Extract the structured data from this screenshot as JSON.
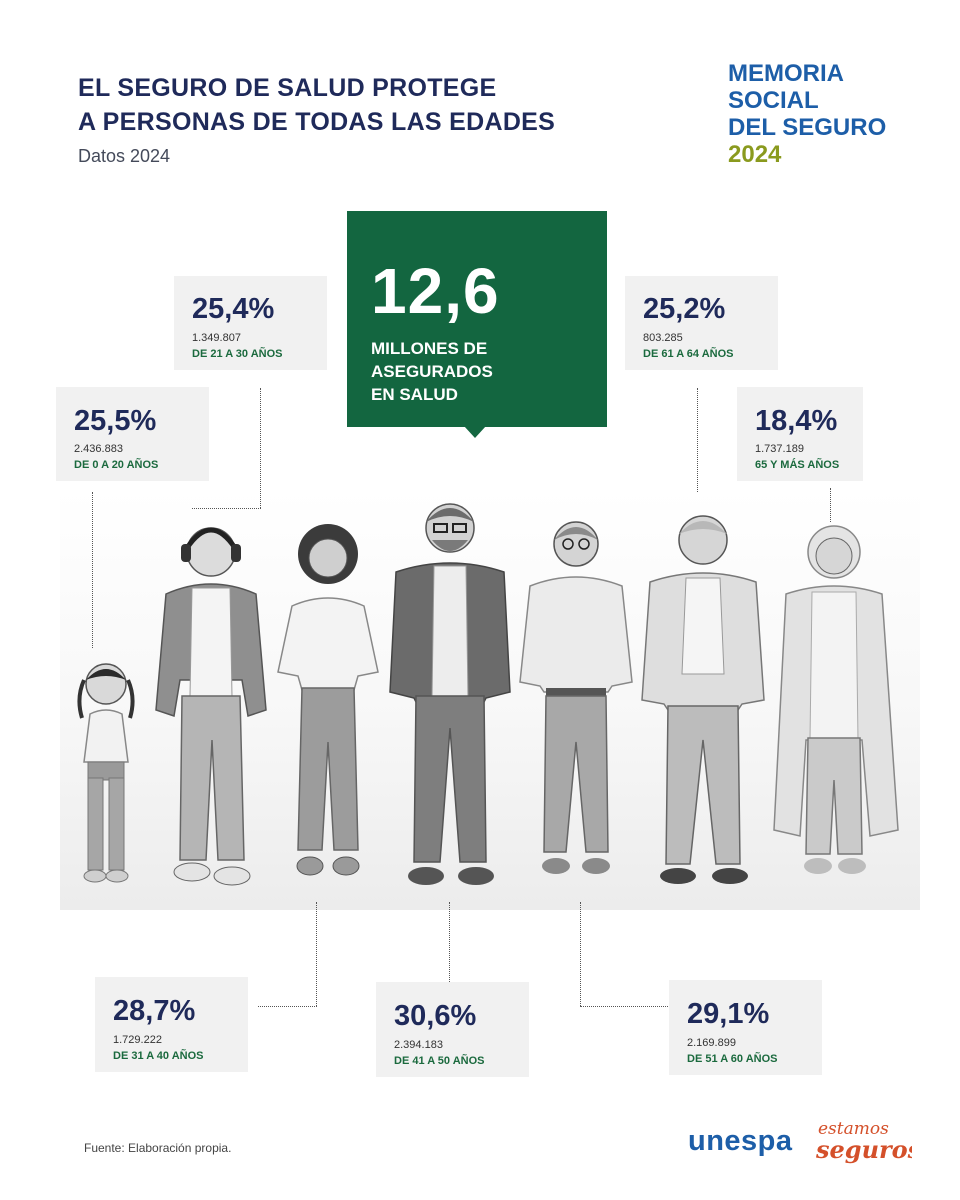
{
  "header": {
    "title_line1": "EL SEGURO DE SALUD PROTEGE",
    "title_line2": "A PERSONAS DE TODAS LAS EDADES",
    "subtitle": "Datos 2024"
  },
  "brand": {
    "line1": "MEMORIA",
    "line2": "SOCIAL",
    "line3": "DEL SEGURO",
    "year": "2024"
  },
  "hero": {
    "value": "12,6",
    "line1": "MILLONES DE",
    "line2": "ASEGURADOS",
    "line3": "EN SALUD"
  },
  "groups": [
    {
      "pct": "25,5%",
      "count": "2.436.883",
      "age": "DE 0 A 20 AÑOS"
    },
    {
      "pct": "25,4%",
      "count": "1.349.807",
      "age": "DE 21 A 30 AÑOS"
    },
    {
      "pct": "28,7%",
      "count": "1.729.222",
      "age": "DE 31 A 40 AÑOS"
    },
    {
      "pct": "30,6%",
      "count": "2.394.183",
      "age": "DE 41 A 50 AÑOS"
    },
    {
      "pct": "29,1%",
      "count": "2.169.899",
      "age": "DE 51 A 60 AÑOS"
    },
    {
      "pct": "25,2%",
      "count": "803.285",
      "age": "DE 61 A 64 AÑOS"
    },
    {
      "pct": "18,4%",
      "count": "1.737.189",
      "age": "65 Y MÁS AÑOS"
    }
  ],
  "people": [
    {
      "name": "child-girl"
    },
    {
      "name": "young-man-headphones"
    },
    {
      "name": "young-woman"
    },
    {
      "name": "middle-aged-man"
    },
    {
      "name": "woman-glasses"
    },
    {
      "name": "older-man"
    },
    {
      "name": "elderly-woman"
    }
  ],
  "footer": {
    "source": "Fuente: Elaboración propia.",
    "logo_unespa": "unespa",
    "logo_estamos_line1": "estamos",
    "logo_estamos_line2": "seguros"
  },
  "colors": {
    "navy": "#1f2a5a",
    "blue": "#1d5ea8",
    "olive": "#8a9a1e",
    "green": "#136640",
    "age_green": "#1b6a3e",
    "card_bg": "#f1f1f1",
    "logo_orange": "#d4502a"
  }
}
